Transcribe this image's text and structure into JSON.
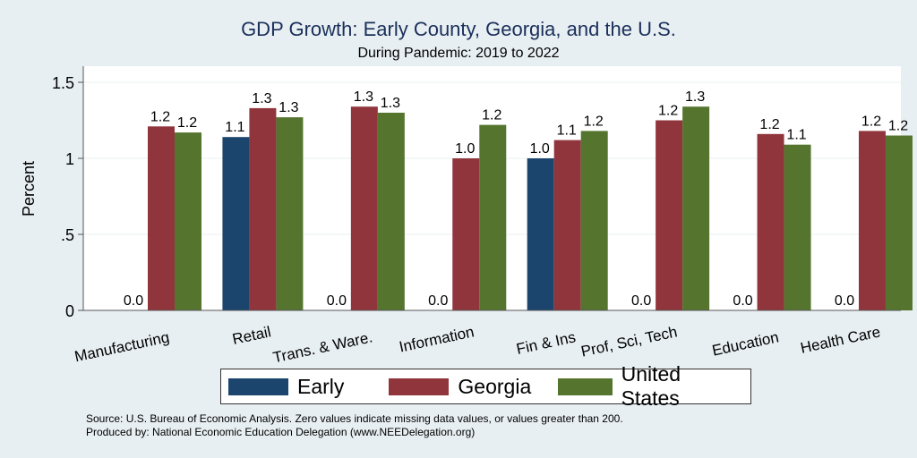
{
  "chart_data": {
    "type": "bar",
    "title": "GDP Growth: Early County, Georgia, and the U.S.",
    "subtitle": "During Pandemic: 2019 to 2022",
    "xlabel": "",
    "ylabel": "Percent",
    "ylim": [
      0,
      1.6
    ],
    "yticks": [
      0,
      0.5,
      1,
      1.5
    ],
    "ytick_labels": [
      "0",
      ".5",
      "1",
      "1.5"
    ],
    "grid": true,
    "legend_position": "bottom",
    "categories": [
      "Manufacturing",
      "Retail",
      "Trans. & Ware.",
      "Information",
      "Fin & Ins",
      "Prof, Sci, Tech",
      "Education",
      "Health Care"
    ],
    "series": [
      {
        "name": "Early",
        "color": "#1c456e",
        "values": [
          0.0,
          1.14,
          0.0,
          0.0,
          1.0,
          0.0,
          0.0,
          0.0
        ],
        "labels": [
          "0.0",
          "1.1",
          "0.0",
          "0.0",
          "1.0",
          "0.0",
          "0.0",
          "0.0"
        ]
      },
      {
        "name": "Georgia",
        "color": "#90353b",
        "values": [
          1.21,
          1.33,
          1.34,
          1.0,
          1.12,
          1.25,
          1.16,
          1.18
        ],
        "labels": [
          "1.2",
          "1.3",
          "1.3",
          "1.0",
          "1.1",
          "1.2",
          "1.2",
          "1.2"
        ]
      },
      {
        "name": "United States",
        "color": "#55752f",
        "values": [
          1.17,
          1.27,
          1.3,
          1.22,
          1.18,
          1.34,
          1.09,
          1.15
        ],
        "labels": [
          "1.2",
          "1.3",
          "1.3",
          "1.2",
          "1.2",
          "1.3",
          "1.1",
          "1.2"
        ]
      }
    ]
  },
  "notes": {
    "source": "Source: U.S. Bureau of Economic Analysis. Zero values indicate missing data values, or values greater than 200.",
    "produced_by": "Produced by: National Economic Education Delegation (www.NEEDelegation.org)"
  }
}
